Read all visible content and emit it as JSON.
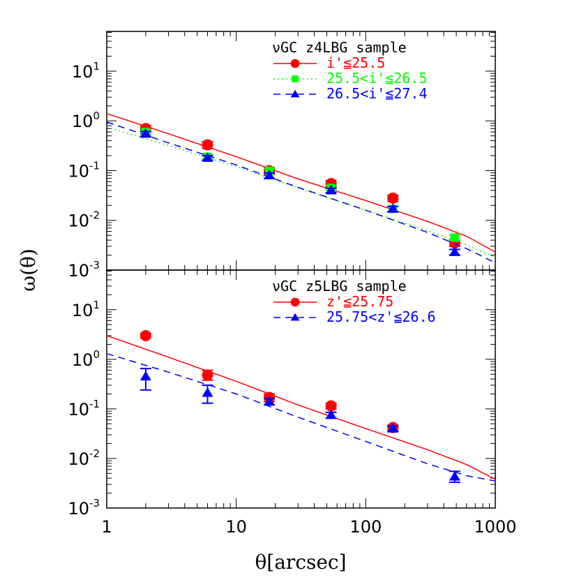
{
  "chart_data": [
    {
      "type": "scatter",
      "title": "νGC z4LBG sample",
      "xscale": "log",
      "yscale": "log",
      "xlim": [
        1,
        1000
      ],
      "ylim": [
        0.001,
        63
      ],
      "xticks": [
        "1",
        "10",
        "100",
        "1000"
      ],
      "yticks": [
        {
          "base": "10",
          "exp": "1"
        },
        {
          "base": "10",
          "exp": "0"
        },
        {
          "base": "10",
          "exp": "-1"
        },
        {
          "base": "10",
          "exp": "-2"
        },
        {
          "base": "10",
          "exp": "-3"
        }
      ],
      "legend_placement": "top-right",
      "series": [
        {
          "name": "i'≦25.5",
          "color": "#ff0000",
          "marker": "circle",
          "line": "solid",
          "x": [
            2,
            6,
            18,
            54,
            162,
            486
          ],
          "y": [
            0.7,
            0.33,
            0.1,
            0.055,
            0.028,
            0.0035
          ],
          "yerr_low": [
            0.6,
            0.28,
            0.085,
            0.047,
            0.024,
            0.003
          ],
          "yerr_high": [
            0.8,
            0.38,
            0.115,
            0.063,
            0.032,
            0.004
          ],
          "model": [
            [
              1,
              1.4
            ],
            [
              3,
              0.55
            ],
            [
              10,
              0.19
            ],
            [
              30,
              0.068
            ],
            [
              100,
              0.025
            ],
            [
              300,
              0.0095
            ],
            [
              600,
              0.0048
            ],
            [
              1000,
              0.0023
            ]
          ]
        },
        {
          "name": "25.5<i'≦26.5",
          "color": "#00ff00",
          "marker": "square",
          "line": "dotted",
          "x": [
            2,
            6,
            18,
            54,
            162,
            486
          ],
          "y": [
            0.6,
            0.19,
            0.1,
            0.045,
            0.017,
            0.0045
          ],
          "yerr_low": [
            0.54,
            0.17,
            0.09,
            0.04,
            0.015,
            0.004
          ],
          "yerr_high": [
            0.66,
            0.21,
            0.11,
            0.05,
            0.019,
            0.005
          ],
          "model": [
            [
              1,
              0.75
            ],
            [
              3,
              0.32
            ],
            [
              10,
              0.12
            ],
            [
              30,
              0.045
            ],
            [
              100,
              0.016
            ],
            [
              300,
              0.0062
            ],
            [
              600,
              0.0032
            ],
            [
              1000,
              0.0018
            ]
          ]
        },
        {
          "name": "26.5<i'≦27.4",
          "color": "#0000ff",
          "marker": "triangle",
          "line": "dashed",
          "x": [
            2,
            6,
            18,
            54,
            162,
            486
          ],
          "y": [
            0.55,
            0.18,
            0.08,
            0.04,
            0.017,
            0.0023
          ],
          "yerr_low": [
            0.49,
            0.16,
            0.07,
            0.036,
            0.015,
            0.002
          ],
          "yerr_high": [
            0.61,
            0.2,
            0.09,
            0.044,
            0.019,
            0.0026
          ],
          "model": [
            [
              1,
              0.95
            ],
            [
              3,
              0.36
            ],
            [
              10,
              0.13
            ],
            [
              30,
              0.046
            ],
            [
              100,
              0.016
            ],
            [
              300,
              0.0057
            ],
            [
              600,
              0.0027
            ],
            [
              1000,
              0.0014
            ]
          ]
        }
      ]
    },
    {
      "type": "scatter",
      "title": "νGC z5LBG sample",
      "xscale": "log",
      "yscale": "log",
      "xlim": [
        1,
        1000
      ],
      "ylim": [
        0.001,
        63
      ],
      "xlabel": "θ[arcsec]",
      "ylabel": "ω(θ)",
      "legend_placement": "top-right",
      "series": [
        {
          "name": "z'≦25.75",
          "color": "#ff0000",
          "marker": "circle",
          "line": "solid",
          "x": [
            2,
            6,
            18,
            54,
            162
          ],
          "y": [
            3.0,
            0.48,
            0.17,
            0.115,
            0.042
          ],
          "yerr_low": [
            2.7,
            0.38,
            0.14,
            0.1,
            0.037
          ],
          "yerr_high": [
            3.3,
            0.6,
            0.2,
            0.13,
            0.047
          ],
          "model": [
            [
              1,
              3.0
            ],
            [
              3,
              1.1
            ],
            [
              10,
              0.36
            ],
            [
              30,
              0.12
            ],
            [
              100,
              0.04
            ],
            [
              300,
              0.015
            ],
            [
              600,
              0.0075
            ],
            [
              1000,
              0.0038
            ]
          ]
        },
        {
          "name": "25.75<z'≦26.6",
          "color": "#0000ff",
          "marker": "triangle",
          "line": "dashed",
          "x": [
            2,
            6,
            18,
            54,
            162,
            486
          ],
          "y": [
            0.45,
            0.21,
            0.14,
            0.075,
            0.04,
            0.0043
          ],
          "yerr_low": [
            0.24,
            0.13,
            0.12,
            0.065,
            0.035,
            0.0033
          ],
          "yerr_high": [
            0.65,
            0.3,
            0.16,
            0.085,
            0.045,
            0.0055
          ],
          "model": [
            [
              1,
              1.3
            ],
            [
              3,
              0.55
            ],
            [
              10,
              0.2
            ],
            [
              30,
              0.068
            ],
            [
              100,
              0.022
            ],
            [
              300,
              0.0078
            ],
            [
              600,
              0.0045
            ],
            [
              1000,
              0.0035
            ]
          ]
        }
      ]
    }
  ]
}
